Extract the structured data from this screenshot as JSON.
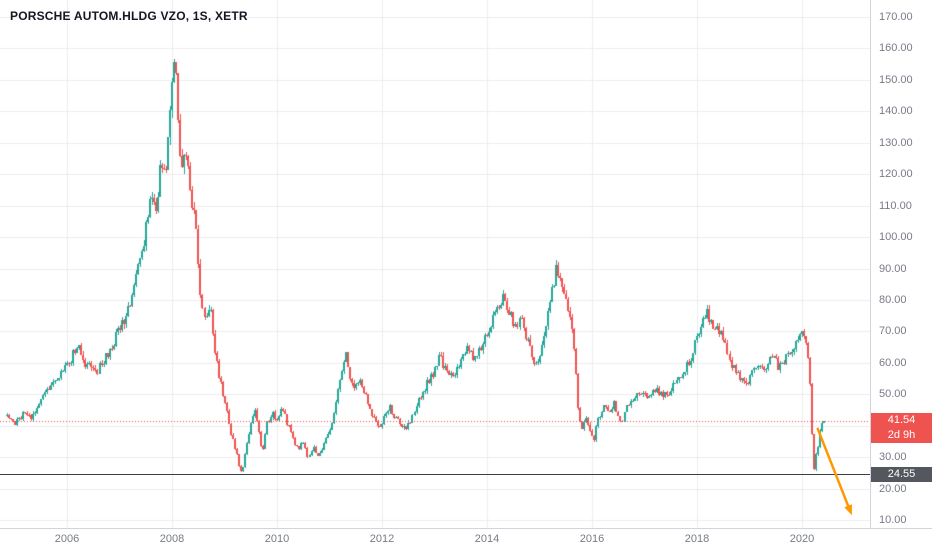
{
  "header": {
    "symbol_title": "PORSCHE AUTOM.HLDG VZO, 1S, XETR"
  },
  "price_axis": {
    "labels": [
      "170.00",
      "160.00",
      "150.00",
      "140.00",
      "130.00",
      "120.00",
      "110.00",
      "100.00",
      "90.00",
      "80.00",
      "70.00",
      "60.00",
      "50.00",
      "40.00",
      "30.00",
      "20.00",
      "10.00"
    ]
  },
  "time_axis": {
    "labels": [
      "2006",
      "2008",
      "2010",
      "2012",
      "2014",
      "2016",
      "2018",
      "2020"
    ]
  },
  "badges": {
    "last_price": "41.54",
    "countdown": "2d 9h",
    "level_price": "24.55"
  },
  "colors": {
    "up": "#26a69a",
    "down": "#ef5350",
    "price_line": "#ef5350",
    "level_line": "#3a3e45",
    "arrow": "#ff9800",
    "grid": "#ececef",
    "axis_text": "#787b86",
    "title_text": "#131722",
    "badge_last": "#ef5350",
    "badge_level": "#54575d"
  },
  "chart_data": {
    "type": "candlestick",
    "title": "PORSCHE AUTOM.HLDG VZO, 1S, XETR",
    "symbol": "PORSCHE AUTOM.HLDG VZO",
    "interval": "1S",
    "exchange": "XETR",
    "ylim": [
      10,
      170
    ],
    "y_ticks": [
      10,
      20,
      30,
      40,
      50,
      60,
      70,
      80,
      90,
      100,
      110,
      120,
      130,
      140,
      150,
      160,
      170
    ],
    "x_ticks": [
      2006,
      2008,
      2010,
      2012,
      2014,
      2016,
      2018,
      2020
    ],
    "x_range": [
      2004.85,
      2020.44
    ],
    "bars_per_year": 26,
    "last_price": 41.54,
    "price_line": 41.54,
    "horizontal_level": 24.55,
    "grid": true,
    "trend": [
      [
        2004.85,
        43
      ],
      [
        2005.0,
        40
      ],
      [
        2005.15,
        44
      ],
      [
        2005.3,
        42
      ],
      [
        2005.5,
        48
      ],
      [
        2005.7,
        53
      ],
      [
        2005.9,
        57
      ],
      [
        2006.05,
        60
      ],
      [
        2006.2,
        66
      ],
      [
        2006.35,
        60
      ],
      [
        2006.55,
        57
      ],
      [
        2006.75,
        62
      ],
      [
        2006.95,
        69
      ],
      [
        2007.15,
        76
      ],
      [
        2007.35,
        90
      ],
      [
        2007.5,
        102
      ],
      [
        2007.6,
        115
      ],
      [
        2007.7,
        110
      ],
      [
        2007.8,
        124
      ],
      [
        2007.88,
        117
      ],
      [
        2007.95,
        138
      ],
      [
        2008.02,
        152
      ],
      [
        2008.07,
        158
      ],
      [
        2008.12,
        140
      ],
      [
        2008.18,
        122
      ],
      [
        2008.28,
        127
      ],
      [
        2008.38,
        112
      ],
      [
        2008.48,
        100
      ],
      [
        2008.55,
        80
      ],
      [
        2008.62,
        73
      ],
      [
        2008.72,
        80
      ],
      [
        2008.82,
        62
      ],
      [
        2008.92,
        54
      ],
      [
        2009.0,
        48
      ],
      [
        2009.08,
        40
      ],
      [
        2009.18,
        34
      ],
      [
        2009.28,
        27
      ],
      [
        2009.33,
        25
      ],
      [
        2009.42,
        34
      ],
      [
        2009.5,
        40
      ],
      [
        2009.58,
        45
      ],
      [
        2009.65,
        38
      ],
      [
        2009.72,
        32
      ],
      [
        2009.8,
        40
      ],
      [
        2009.9,
        44
      ],
      [
        2010.0,
        42
      ],
      [
        2010.1,
        45
      ],
      [
        2010.2,
        41
      ],
      [
        2010.3,
        36
      ],
      [
        2010.42,
        32
      ],
      [
        2010.5,
        35
      ],
      [
        2010.58,
        30
      ],
      [
        2010.68,
        33
      ],
      [
        2010.78,
        31
      ],
      [
        2010.88,
        34
      ],
      [
        2010.96,
        37
      ],
      [
        2011.05,
        42
      ],
      [
        2011.15,
        50
      ],
      [
        2011.25,
        58
      ],
      [
        2011.3,
        63
      ],
      [
        2011.38,
        56
      ],
      [
        2011.48,
        52
      ],
      [
        2011.58,
        55
      ],
      [
        2011.68,
        50
      ],
      [
        2011.78,
        45
      ],
      [
        2011.88,
        41
      ],
      [
        2011.96,
        40
      ],
      [
        2012.05,
        43
      ],
      [
        2012.15,
        46
      ],
      [
        2012.25,
        43
      ],
      [
        2012.35,
        41
      ],
      [
        2012.45,
        39
      ],
      [
        2012.55,
        42
      ],
      [
        2012.65,
        46
      ],
      [
        2012.78,
        51
      ],
      [
        2012.9,
        55
      ],
      [
        2013.0,
        58
      ],
      [
        2013.1,
        62
      ],
      [
        2013.22,
        57
      ],
      [
        2013.35,
        55
      ],
      [
        2013.5,
        61
      ],
      [
        2013.62,
        65
      ],
      [
        2013.75,
        61
      ],
      [
        2013.88,
        65
      ],
      [
        2014.0,
        70
      ],
      [
        2014.12,
        74
      ],
      [
        2014.25,
        79
      ],
      [
        2014.35,
        81
      ],
      [
        2014.45,
        75
      ],
      [
        2014.55,
        72
      ],
      [
        2014.65,
        74
      ],
      [
        2014.75,
        68
      ],
      [
        2014.85,
        61
      ],
      [
        2014.95,
        59
      ],
      [
        2015.05,
        67
      ],
      [
        2015.15,
        74
      ],
      [
        2015.25,
        84
      ],
      [
        2015.32,
        92
      ],
      [
        2015.4,
        86
      ],
      [
        2015.5,
        79
      ],
      [
        2015.6,
        73
      ],
      [
        2015.68,
        62
      ],
      [
        2015.74,
        45
      ],
      [
        2015.8,
        38
      ],
      [
        2015.88,
        42
      ],
      [
        2015.96,
        38
      ],
      [
        2016.04,
        36
      ],
      [
        2016.12,
        42
      ],
      [
        2016.22,
        46
      ],
      [
        2016.32,
        44
      ],
      [
        2016.42,
        47
      ],
      [
        2016.5,
        44
      ],
      [
        2016.56,
        41
      ],
      [
        2016.66,
        46
      ],
      [
        2016.8,
        48
      ],
      [
        2016.94,
        51
      ],
      [
        2017.06,
        49
      ],
      [
        2017.2,
        52
      ],
      [
        2017.34,
        49
      ],
      [
        2017.48,
        51
      ],
      [
        2017.62,
        54
      ],
      [
        2017.78,
        58
      ],
      [
        2017.92,
        63
      ],
      [
        2018.04,
        70
      ],
      [
        2018.12,
        74
      ],
      [
        2018.2,
        77
      ],
      [
        2018.3,
        70
      ],
      [
        2018.4,
        72
      ],
      [
        2018.5,
        67
      ],
      [
        2018.62,
        61
      ],
      [
        2018.74,
        57
      ],
      [
        2018.86,
        55
      ],
      [
        2018.96,
        54
      ],
      [
        2019.06,
        57
      ],
      [
        2019.16,
        60
      ],
      [
        2019.26,
        57
      ],
      [
        2019.36,
        60
      ],
      [
        2019.46,
        62
      ],
      [
        2019.56,
        58
      ],
      [
        2019.66,
        61
      ],
      [
        2019.76,
        63
      ],
      [
        2019.86,
        65
      ],
      [
        2019.96,
        68
      ],
      [
        2020.04,
        70
      ],
      [
        2020.1,
        66
      ],
      [
        2020.16,
        54
      ],
      [
        2020.2,
        36
      ],
      [
        2020.23,
        26
      ],
      [
        2020.28,
        31
      ],
      [
        2020.33,
        36
      ],
      [
        2020.4,
        42
      ],
      [
        2020.44,
        41.5
      ]
    ],
    "annotations": [
      {
        "type": "arrow",
        "from": [
          2020.3,
          39
        ],
        "to": [
          2020.95,
          11.5
        ],
        "color": "#ff9800"
      }
    ]
  }
}
